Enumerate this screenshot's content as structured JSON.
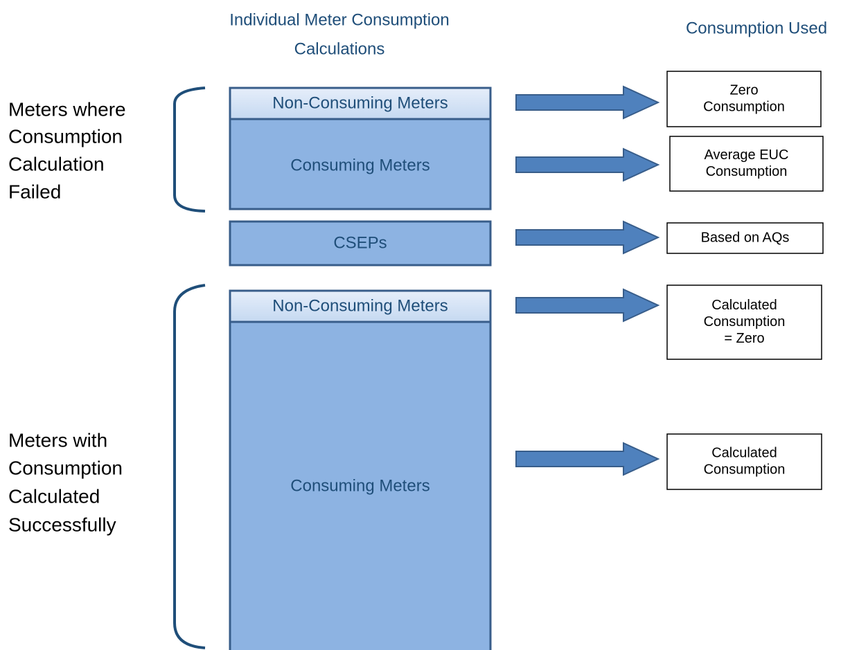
{
  "headers": {
    "calculations": [
      "Individual Meter Consumption",
      "Calculations"
    ],
    "used": [
      "Consumption Used"
    ]
  },
  "groups": [
    {
      "label": [
        "Meters where",
        "Consumption",
        "Calculation",
        "Failed"
      ]
    },
    {
      "label": [
        "Meters with",
        "Consumption",
        "Calculated",
        "Successfully"
      ]
    }
  ],
  "blocks": [
    {
      "label": "Non-Consuming Meters"
    },
    {
      "label": "Consuming Meters"
    },
    {
      "label": "CSEPs"
    },
    {
      "label": "Non-Consuming Meters"
    },
    {
      "label": "Consuming Meters"
    }
  ],
  "outcomes": [
    {
      "label": [
        "Zero",
        "Consumption"
      ]
    },
    {
      "label": [
        "Average EUC",
        "Consumption"
      ]
    },
    {
      "label": [
        "Based on AQs"
      ]
    },
    {
      "label": [
        "Calculated",
        "Consumption",
        "= Zero"
      ]
    },
    {
      "label": [
        "Calculated",
        "Consumption"
      ]
    }
  ]
}
